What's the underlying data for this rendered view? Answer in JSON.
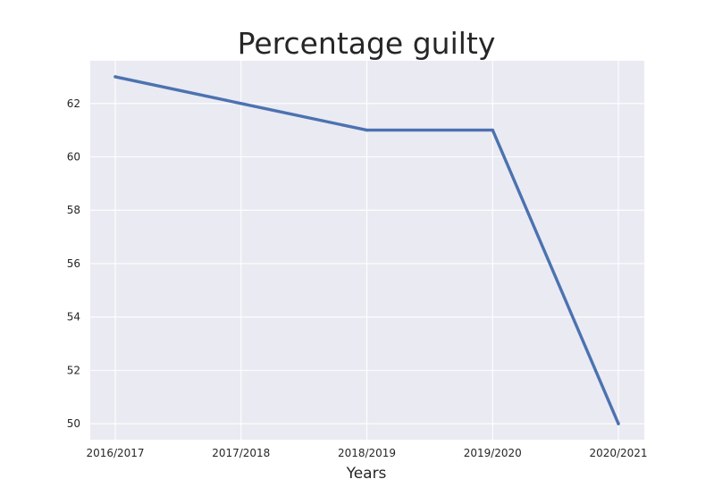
{
  "chart_data": {
    "type": "line",
    "title": "Percentage guilty",
    "xlabel": "Years",
    "ylabel": "",
    "categories": [
      "2016/2017",
      "2017/2018",
      "2018/2019",
      "2019/2020",
      "2020/2021"
    ],
    "series": [
      {
        "values": [
          63,
          62,
          61,
          61,
          50
        ],
        "color": "#4c72b0"
      }
    ],
    "yticks": [
      50,
      52,
      54,
      56,
      58,
      60,
      62
    ],
    "ylim": [
      49.4,
      63.6
    ],
    "grid": true,
    "background_color": "#eaeaf2",
    "grid_color": "#ffffff"
  }
}
